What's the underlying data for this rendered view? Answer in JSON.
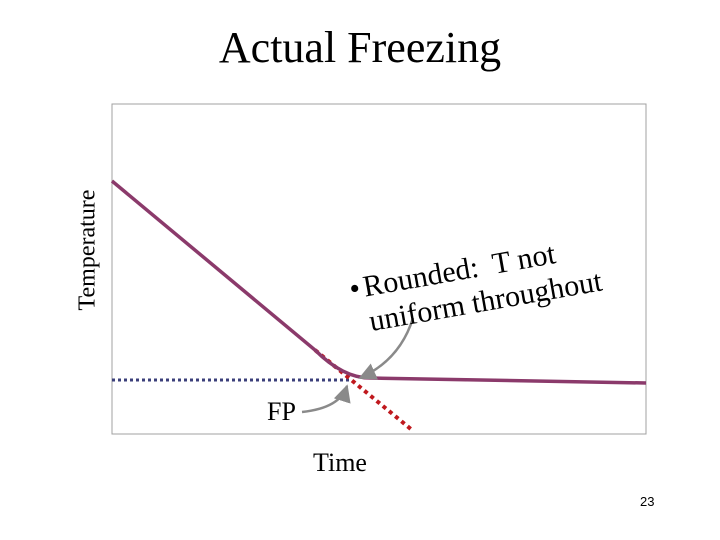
{
  "slide": {
    "title": "Actual Freezing",
    "page_number": "23"
  },
  "chart_data": {
    "type": "line",
    "title": "Actual Freezing",
    "xlabel": "Time",
    "ylabel": "Temperature",
    "freezing_point_label": "FP",
    "grid": false,
    "legend": "none",
    "annotation": {
      "bullet": "•",
      "lines": [
        "Rounded:  T not",
        "uniform throughout"
      ]
    },
    "series": [
      {
        "style": "solid",
        "color": "#8B3A6B"
      },
      {
        "style": "dotted",
        "color": "#C0191E"
      },
      {
        "style": "dotted",
        "color": "#3B3F7A"
      }
    ],
    "colors": {
      "curve": "#8B3A6B",
      "ideal_extension": "#C0191E",
      "fp_line": "#3B3F7A",
      "arrows": "#8A8A8A",
      "frame": "#A0A0A0"
    }
  }
}
